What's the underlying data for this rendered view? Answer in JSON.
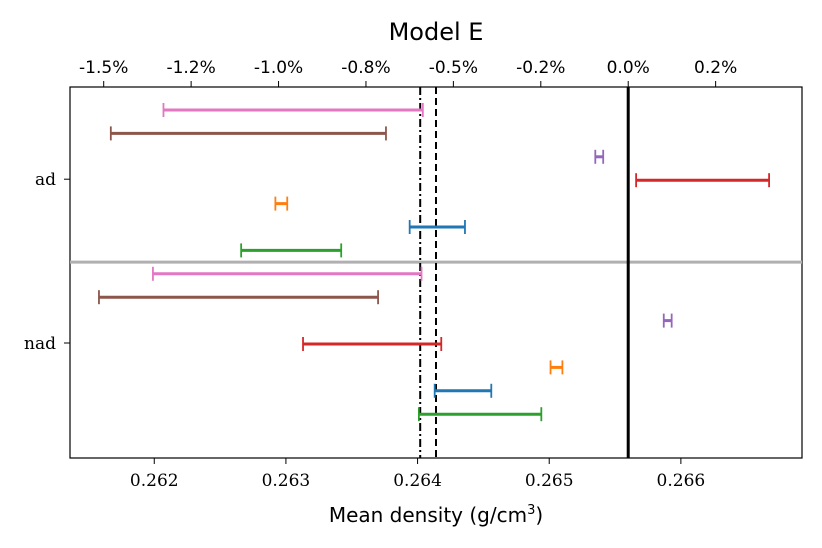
{
  "chart_data": {
    "type": "errorbar-interval",
    "title": "Model E",
    "xlabel": "Mean density (g/cm",
    "xlabel_sup": "3",
    "xlabel_suffix": ")",
    "xlim": [
      0.26136,
      0.26692
    ],
    "x_ticks": [
      0.262,
      0.263,
      0.264,
      0.265,
      0.266
    ],
    "x_tick_labels": [
      "0.262",
      "0.263",
      "0.264",
      "0.265",
      "0.266"
    ],
    "top_axis_reference": 0.2656,
    "top_ticks_pct": [
      -1.5,
      -1.25,
      -1.0,
      -0.75,
      -0.5,
      -0.25,
      0.0,
      0.25
    ],
    "top_tick_labels": [
      "-1.5%",
      "-1.2%",
      "-1.0%",
      "-0.8%",
      "-0.5%",
      "-0.2%",
      "0.0%",
      "0.2%"
    ],
    "categories": [
      "ad",
      "nad"
    ],
    "reference_lines": [
      {
        "name": "solid",
        "x": 0.2656,
        "style": "solid"
      },
      {
        "name": "dashed",
        "x": 0.26414,
        "style": "dashed"
      },
      {
        "name": "dashdot",
        "x": 0.26402,
        "style": "dashdot"
      }
    ],
    "group_separator": "between ad and nad",
    "groups": [
      {
        "category": "ad",
        "intervals": [
          {
            "color": "#e377c2",
            "low": 0.26207,
            "high": 0.26404
          },
          {
            "color": "#8c564b",
            "low": 0.26167,
            "high": 0.26376
          },
          {
            "color": "#9467bd",
            "low": 0.26535,
            "high": 0.26541
          },
          {
            "color": "#d62728",
            "low": 0.26566,
            "high": 0.26667
          },
          {
            "color": "#ff7f0e",
            "low": 0.26292,
            "high": 0.26301
          },
          {
            "color": "#1f77b4",
            "low": 0.26394,
            "high": 0.26436
          },
          {
            "color": "#2ca02c",
            "low": 0.26266,
            "high": 0.26342
          }
        ]
      },
      {
        "category": "nad",
        "intervals": [
          {
            "color": "#e377c2",
            "low": 0.26199,
            "high": 0.26403
          },
          {
            "color": "#8c564b",
            "low": 0.26158,
            "high": 0.2637
          },
          {
            "color": "#9467bd",
            "low": 0.26587,
            "high": 0.26593
          },
          {
            "color": "#d62728",
            "low": 0.26313,
            "high": 0.26418
          },
          {
            "color": "#ff7f0e",
            "low": 0.26501,
            "high": 0.2651
          },
          {
            "color": "#1f77b4",
            "low": 0.26413,
            "high": 0.26456
          },
          {
            "color": "#2ca02c",
            "low": 0.26401,
            "high": 0.26494
          }
        ]
      }
    ]
  }
}
